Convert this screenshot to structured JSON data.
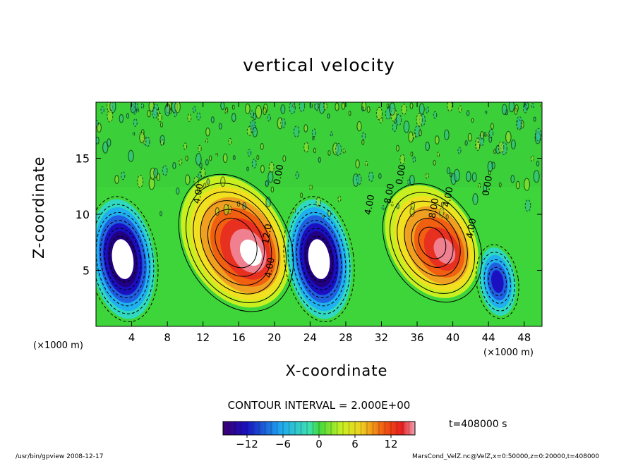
{
  "chart_data": {
    "type": "heatmap",
    "title": "vertical velocity",
    "xlabel": "X-coordinate",
    "ylabel": "Z-coordinate",
    "x_unit_label": "(×1000 m)",
    "xlim": [
      0,
      50
    ],
    "ylim": [
      0,
      20
    ],
    "x_ticks": [
      "4",
      "8",
      "12",
      "16",
      "20",
      "24",
      "28",
      "32",
      "36",
      "40",
      "44",
      "48"
    ],
    "y_ticks": [
      "5",
      "10",
      "15"
    ],
    "contour_interval": "CONTOUR INTERVAL = 2.000E+00",
    "contour_labels": [
      "12.0",
      "4.00",
      "8.00",
      "4.00",
      "0.00",
      "8.00",
      "4.00",
      "4.00",
      "0.00",
      "0.00",
      "4.00"
    ],
    "colorbar": {
      "min": -16,
      "max": 16,
      "ticks": [
        "−12",
        "−6",
        "0",
        "6",
        "12"
      ],
      "tick_values": [
        -12,
        -6,
        0,
        6,
        12
      ]
    },
    "features": [
      {
        "x": 16,
        "z": 7,
        "sign": "positive",
        "peak": 14
      },
      {
        "x": 38,
        "z": 7,
        "sign": "positive",
        "peak": 12
      },
      {
        "x": 3,
        "z": 6,
        "sign": "negative",
        "peak": -14
      },
      {
        "x": 25,
        "z": 6,
        "sign": "negative",
        "peak": -14
      },
      {
        "x": 45,
        "z": 4,
        "sign": "negative",
        "peak": -8
      }
    ]
  },
  "time_label": "t=408000 s",
  "footer_left": "/usr/bin/gpview   2008-12-17",
  "footer_right": "MarsCond_VelZ.nc@VelZ,x=0:50000,z=0:20000,t=408000"
}
